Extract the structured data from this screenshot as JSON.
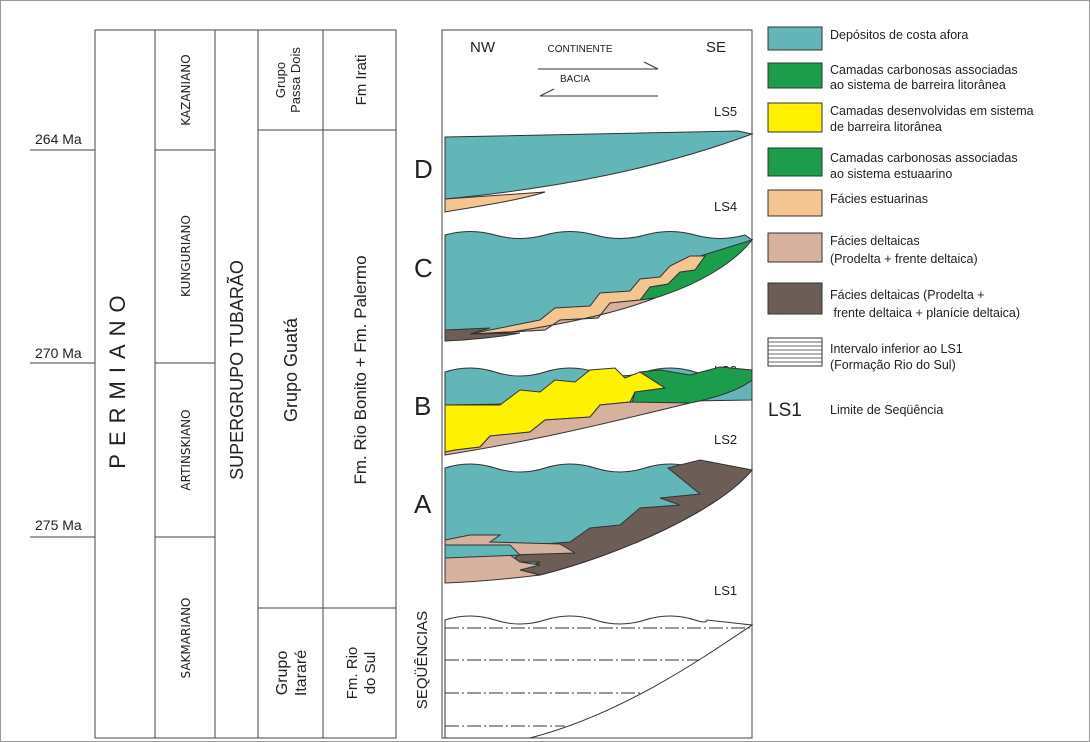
{
  "age_labels": [
    "264 Ma",
    "270 Ma",
    "275 Ma"
  ],
  "columns": {
    "period": "PERMIANO",
    "stages": [
      "KAZANIANO",
      "KUNGURIANO",
      "ARTINSKIANO",
      "SAKMARIANO"
    ],
    "supergroup": "SUPERGRUPO TUBARÃO",
    "groups": [
      [
        "Grupo",
        "Passa Dois"
      ],
      [
        "Grupo Guatá"
      ],
      [
        "Grupo",
        "Itararé"
      ]
    ],
    "formations": [
      [
        "Fm Irati"
      ],
      [
        "Fm. Rio Bonito + Fm. Palermo"
      ],
      [
        "Fm. Rio",
        "do Sul"
      ]
    ]
  },
  "sequences": {
    "title": "SEQÜÊNCIAS",
    "compass": [
      "NW",
      "SE"
    ],
    "arrows": [
      "CONTINENTE",
      "BACIA"
    ],
    "letters": [
      "D",
      "C",
      "B",
      "A"
    ],
    "limits": [
      "LS5",
      "LS4",
      "LS3",
      "LS2",
      "LS1"
    ]
  },
  "legend": [
    {
      "lines": [
        "Depósitos de costa afora"
      ]
    },
    {
      "lines": [
        "Camadas carbonosas associadas",
        "ao sistema de barreira litorânea"
      ]
    },
    {
      "lines": [
        "Camadas desenvolvidas em sistema",
        "de barreira litorânea"
      ]
    },
    {
      "lines": [
        "Camadas carbonosas associadas",
        "ao sistema estuaarino"
      ]
    },
    {
      "lines": [
        "Fácies estuarinas"
      ]
    },
    {
      "lines": [
        "Fácies deltaicas",
        "(Prodelta + frente deltaica)"
      ]
    },
    {
      "lines": [
        "Fácies deltaicas (Prodelta +",
        " frente deltaica + planície deltaica)"
      ]
    },
    {
      "lines": [
        "Intervalo inferior ao LS1",
        "(Formação Rio do Sul)"
      ]
    }
  ],
  "limit_legend": {
    "symbol": "LS1",
    "label": "Limite de Seqüência"
  }
}
